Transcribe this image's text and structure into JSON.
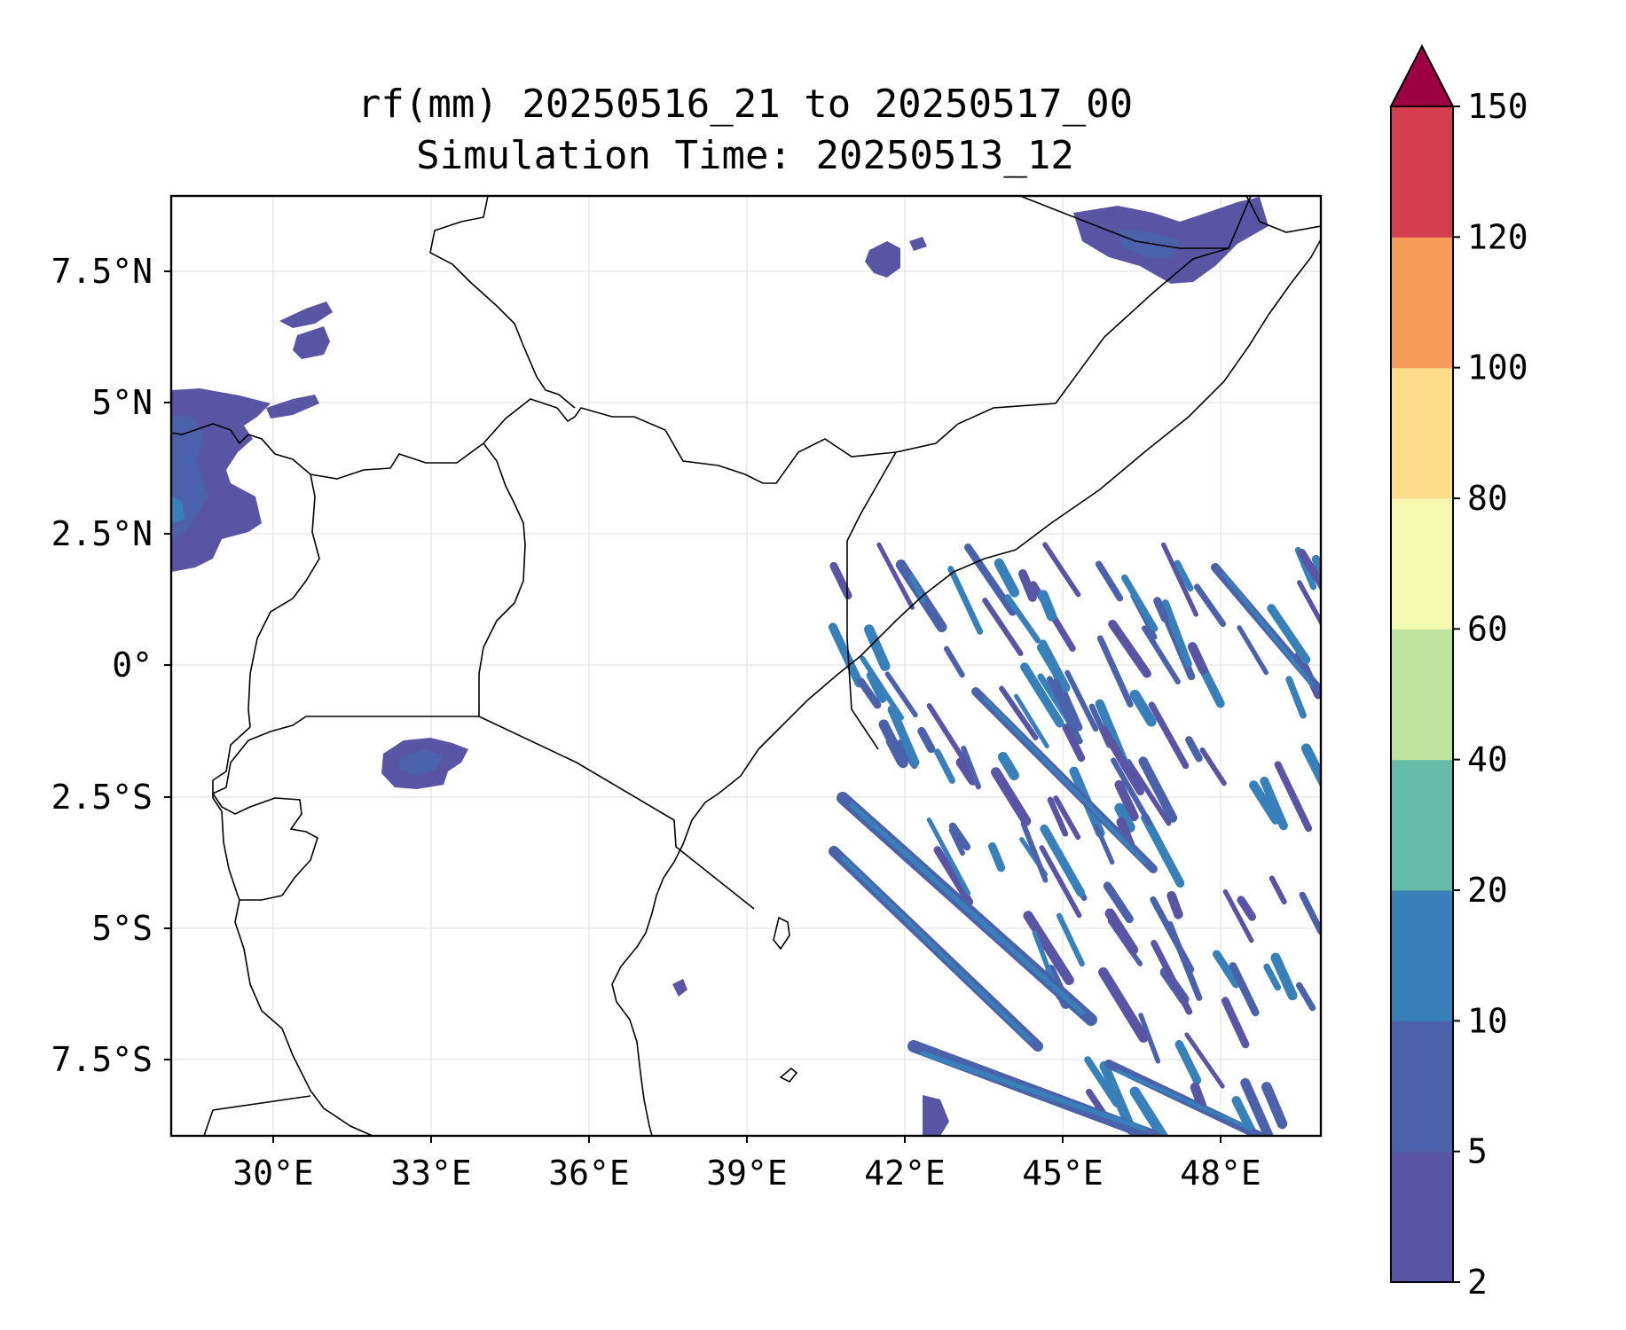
{
  "title_line1": "rf(mm) 20250516_21 to 20250517_00",
  "title_line2": "Simulation Time: 20250513_12",
  "map": {
    "lon_ticks": [
      "30°E",
      "33°E",
      "36°E",
      "39°E",
      "42°E",
      "45°E",
      "48°E"
    ],
    "lat_ticks": [
      "7.5°N",
      "5°N",
      "2.5°N",
      "0°",
      "2.5°S",
      "5°S",
      "7.5°S"
    ],
    "gridlines": true
  },
  "colorbar": {
    "levels": [
      "2",
      "5",
      "10",
      "20",
      "40",
      "60",
      "80",
      "100",
      "120",
      "150"
    ],
    "colors": [
      "#5954a4",
      "#4b62ab",
      "#3880b9",
      "#64bca6",
      "#bfe4a0",
      "#f3f9ae",
      "#fddd8a",
      "#f89c59",
      "#d53e4f"
    ],
    "extend_color": "#9e0142",
    "extend": "max"
  },
  "rain_colors": {
    "light": "#5954a4",
    "moderate": "#4b62ab",
    "heavy": "#3880b9",
    "heavier": "#64bca6"
  }
}
